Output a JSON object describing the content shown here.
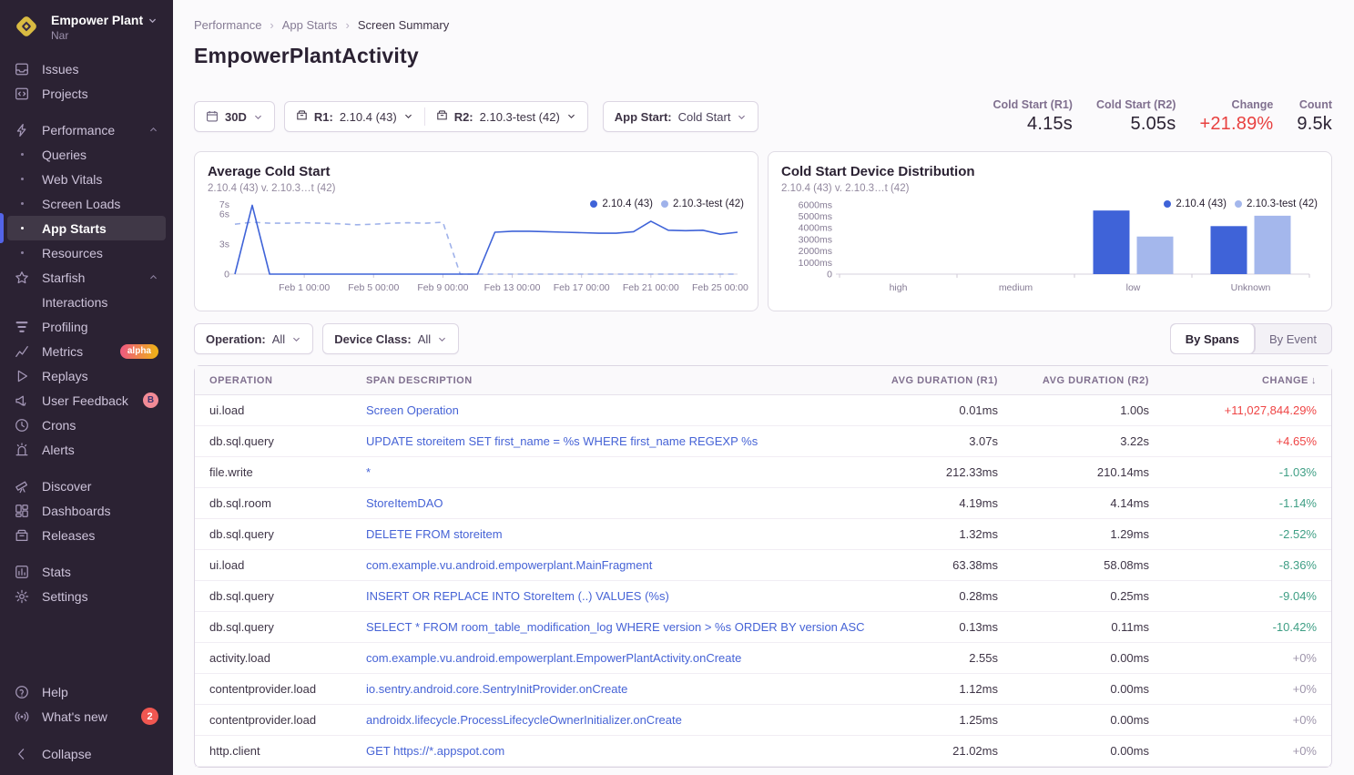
{
  "colors": {
    "sidebar_bg": "#2b2233",
    "accent_blue": "#5364e8",
    "link": "#4663d6",
    "series_dark": "#3f63d8",
    "series_light": "#a4b7ec",
    "change_up_red": "#ef4545",
    "change_down_green": "#3f9f85",
    "badge_red": "#f05751"
  },
  "sidebar": {
    "org": {
      "name": "Empower Plant",
      "sub": "Nar"
    },
    "groups": [
      {
        "items": [
          {
            "label": "Issues",
            "icon": "issues"
          },
          {
            "label": "Projects",
            "icon": "projects"
          }
        ]
      },
      {
        "items": [
          {
            "label": "Performance",
            "icon": "performance",
            "chevron": "up"
          },
          {
            "label": "Queries",
            "sub": true,
            "bullet": true
          },
          {
            "label": "Web Vitals",
            "sub": true,
            "bullet": true
          },
          {
            "label": "Screen Loads",
            "sub": true,
            "bullet": true
          },
          {
            "label": "App Starts",
            "sub": true,
            "bullet": true,
            "active": true
          },
          {
            "label": "Resources",
            "sub": true,
            "bullet": true
          },
          {
            "label": "Starfish",
            "icon": "starfish",
            "chevron": "up"
          },
          {
            "label": "Interactions",
            "sub": true
          },
          {
            "label": "Profiling",
            "icon": "profiling"
          },
          {
            "label": "Metrics",
            "icon": "metrics",
            "badge": {
              "text": "alpha",
              "type": "alpha"
            }
          },
          {
            "label": "Replays",
            "icon": "replays"
          },
          {
            "label": "User Feedback",
            "icon": "feedback",
            "badge": {
              "text": "B",
              "type": "beta"
            }
          },
          {
            "label": "Crons",
            "icon": "crons"
          },
          {
            "label": "Alerts",
            "icon": "alerts"
          }
        ]
      },
      {
        "items": [
          {
            "label": "Discover",
            "icon": "discover"
          },
          {
            "label": "Dashboards",
            "icon": "dashboards"
          },
          {
            "label": "Releases",
            "icon": "releases"
          }
        ]
      },
      {
        "items": [
          {
            "label": "Stats",
            "icon": "stats"
          },
          {
            "label": "Settings",
            "icon": "settings"
          }
        ]
      }
    ],
    "footer": [
      {
        "label": "Help",
        "icon": "help"
      },
      {
        "label": "What's new",
        "icon": "whatsnew",
        "badge": {
          "text": "2",
          "type": "count"
        }
      },
      {
        "label": "Collapse",
        "icon": "collapse",
        "gap_before": true
      }
    ]
  },
  "breadcrumb": {
    "items": [
      "Performance",
      "App Starts",
      "Screen Summary"
    ],
    "separator": "›"
  },
  "page_title": "EmpowerPlantActivity",
  "filters": {
    "date": {
      "label": "30D"
    },
    "releases": [
      {
        "prefix": "R1:",
        "value": "2.10.4 (43)"
      },
      {
        "prefix": "R2:",
        "value": "2.10.3-test (42)"
      }
    ],
    "app_start": {
      "prefix": "App Start:",
      "value": "Cold Start"
    },
    "operation": {
      "prefix": "Operation:",
      "value": "All"
    },
    "device_class": {
      "prefix": "Device Class:",
      "value": "All"
    }
  },
  "stats": [
    {
      "label": "Cold Start (R1)",
      "value": "4.15s"
    },
    {
      "label": "Cold Start (R2)",
      "value": "5.05s"
    },
    {
      "label": "Change",
      "value": "+21.89%",
      "highlight": "red"
    },
    {
      "label": "Count",
      "value": "9.5k"
    }
  ],
  "view_toggle": {
    "options": [
      "By Spans",
      "By Event"
    ],
    "active": 0
  },
  "chart_data": [
    {
      "type": "line",
      "title": "Average Cold Start",
      "subtitle": "2.10.4 (43) v. 2.10.3…t (42)",
      "ylabel": "seconds",
      "ymax": 7.3,
      "yticks": [
        {
          "v": 7,
          "label": "7s"
        },
        {
          "v": 6,
          "label": "6s"
        },
        {
          "v": 3,
          "label": "3s"
        },
        {
          "v": 0,
          "label": "0"
        }
      ],
      "xticks": [
        {
          "i": 4,
          "label": "Feb 1 00:00"
        },
        {
          "i": 8,
          "label": "Feb 5 00:00"
        },
        {
          "i": 12,
          "label": "Feb 9 00:00"
        },
        {
          "i": 16,
          "label": "Feb 13 00:00"
        },
        {
          "i": 20,
          "label": "Feb 17 00:00"
        },
        {
          "i": 24,
          "label": "Feb 21 00:00"
        },
        {
          "i": 28,
          "label": "Feb 25 00:00"
        }
      ],
      "series": [
        {
          "name": "2.10.4 (43)",
          "style": "solid",
          "color": "#3f63d8",
          "values": [
            0,
            6.9,
            0,
            0,
            0,
            0,
            0,
            0,
            0,
            0,
            0,
            0,
            0,
            0,
            0,
            4.2,
            4.3,
            4.3,
            4.25,
            4.2,
            4.15,
            4.1,
            4.1,
            4.25,
            5.3,
            4.4,
            4.35,
            4.4,
            4.0,
            4.2
          ]
        },
        {
          "name": "2.10.3-test (42)",
          "style": "dashed",
          "color": "#9fb2ea",
          "values": [
            5.0,
            5.2,
            5.1,
            5.1,
            5.15,
            5.1,
            5.05,
            4.95,
            5.0,
            5.1,
            5.15,
            5.1,
            5.2,
            0,
            0,
            0,
            0,
            0,
            0,
            0,
            0,
            0,
            0,
            0,
            0,
            0,
            0,
            0,
            0,
            0
          ]
        }
      ]
    },
    {
      "type": "bar",
      "title": "Cold Start Device Distribution",
      "subtitle": "2.10.4 (43) v. 2.10.3…t (42)",
      "categories": [
        "high",
        "medium",
        "low",
        "Unknown"
      ],
      "ymax": 6300,
      "yticks": [
        {
          "v": 6000,
          "label": "6000ms"
        },
        {
          "v": 5000,
          "label": "5000ms"
        },
        {
          "v": 4000,
          "label": "4000ms"
        },
        {
          "v": 3000,
          "label": "3000ms"
        },
        {
          "v": 2000,
          "label": "2000ms"
        },
        {
          "v": 1000,
          "label": "1000ms"
        },
        {
          "v": 0,
          "label": "0"
        }
      ],
      "series": [
        {
          "name": "2.10.4 (43)",
          "color": "#3f63d8",
          "values": [
            0,
            0,
            5500,
            4150
          ]
        },
        {
          "name": "2.10.3-test (42)",
          "color": "#a4b7ec",
          "values": [
            0,
            0,
            3250,
            5050
          ]
        }
      ]
    }
  ],
  "table": {
    "columns": [
      "OPERATION",
      "SPAN DESCRIPTION",
      "AVG DURATION (R1)",
      "AVG DURATION (R2)",
      "CHANGE"
    ],
    "sort_column": "CHANGE",
    "sort_arrow": "↓",
    "rows": [
      {
        "operation": "ui.load",
        "description": "Screen Operation",
        "r1": "0.01ms",
        "r2": "1.00s",
        "change": "+11,027,844.29%"
      },
      {
        "operation": "db.sql.query",
        "description": "UPDATE storeitem SET first_name = %s WHERE first_name REGEXP %s",
        "r1": "3.07s",
        "r2": "3.22s",
        "change": "+4.65%"
      },
      {
        "operation": "file.write",
        "description": "*",
        "r1": "212.33ms",
        "r2": "210.14ms",
        "change": "-1.03%"
      },
      {
        "operation": "db.sql.room",
        "description": "StoreItemDAO",
        "r1": "4.19ms",
        "r2": "4.14ms",
        "change": "-1.14%"
      },
      {
        "operation": "db.sql.query",
        "description": "DELETE FROM storeitem",
        "r1": "1.32ms",
        "r2": "1.29ms",
        "change": "-2.52%"
      },
      {
        "operation": "ui.load",
        "description": "com.example.vu.android.empowerplant.MainFragment",
        "r1": "63.38ms",
        "r2": "58.08ms",
        "change": "-8.36%"
      },
      {
        "operation": "db.sql.query",
        "description": "INSERT OR REPLACE INTO StoreItem (..) VALUES (%s)",
        "r1": "0.28ms",
        "r2": "0.25ms",
        "change": "-9.04%"
      },
      {
        "operation": "db.sql.query",
        "description": "SELECT * FROM room_table_modification_log WHERE version > %s ORDER BY version ASC",
        "r1": "0.13ms",
        "r2": "0.11ms",
        "change": "-10.42%"
      },
      {
        "operation": "activity.load",
        "description": "com.example.vu.android.empowerplant.EmpowerPlantActivity.onCreate",
        "r1": "2.55s",
        "r2": "0.00ms",
        "change": "+0%"
      },
      {
        "operation": "contentprovider.load",
        "description": "io.sentry.android.core.SentryInitProvider.onCreate",
        "r1": "1.12ms",
        "r2": "0.00ms",
        "change": "+0%"
      },
      {
        "operation": "contentprovider.load",
        "description": "androidx.lifecycle.ProcessLifecycleOwnerInitializer.onCreate",
        "r1": "1.25ms",
        "r2": "0.00ms",
        "change": "+0%"
      },
      {
        "operation": "http.client",
        "description": "GET https://*.appspot.com",
        "r1": "21.02ms",
        "r2": "0.00ms",
        "change": "+0%"
      }
    ]
  }
}
